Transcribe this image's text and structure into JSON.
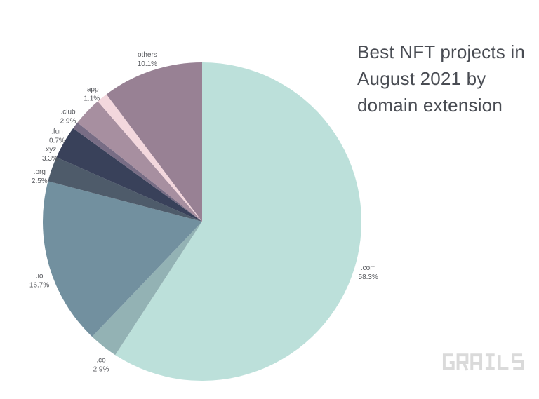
{
  "header": {
    "title_lines": [
      "Best NFT projects in",
      "August 2021 by",
      "domain extension"
    ]
  },
  "footer": {
    "logo_text": "GRAILS"
  },
  "colors": {
    "background": "#ffffff",
    "title_text": "#494c53",
    "label_text": "#54565b",
    "logo": "#dadada"
  },
  "chart_data": {
    "type": "pie",
    "title": "Best NFT projects in August 2021 by domain extension",
    "order": "clockwise from 12 o'clock",
    "total_shown_pct": 98.5,
    "legend_position": "labels outside slices",
    "slices": [
      {
        "label": ".com",
        "pct": 58.3,
        "pct_label": "58.3%",
        "color": "#bce0da"
      },
      {
        "label": ".co",
        "pct": 2.9,
        "pct_label": "2.9%",
        "color": "#93b2b4"
      },
      {
        "label": ".io",
        "pct": 16.7,
        "pct_label": "16.7%",
        "color": "#72909f"
      },
      {
        "label": ".org",
        "pct": 2.5,
        "pct_label": "2.5%",
        "color": "#4e5b6a"
      },
      {
        "label": ".xyz",
        "pct": 3.3,
        "pct_label": "3.3%",
        "color": "#39415a"
      },
      {
        "label": ".fun",
        "pct": 0.7,
        "pct_label": "0.7%",
        "color": "#786d85"
      },
      {
        "label": ".club",
        "pct": 2.9,
        "pct_label": "2.9%",
        "color": "#a78fa0"
      },
      {
        "label": ".app",
        "pct": 1.1,
        "pct_label": "1.1%",
        "color": "#f3d7dd"
      },
      {
        "label": "others",
        "pct": 10.1,
        "pct_label": "10.1%",
        "color": "#988194"
      }
    ]
  }
}
